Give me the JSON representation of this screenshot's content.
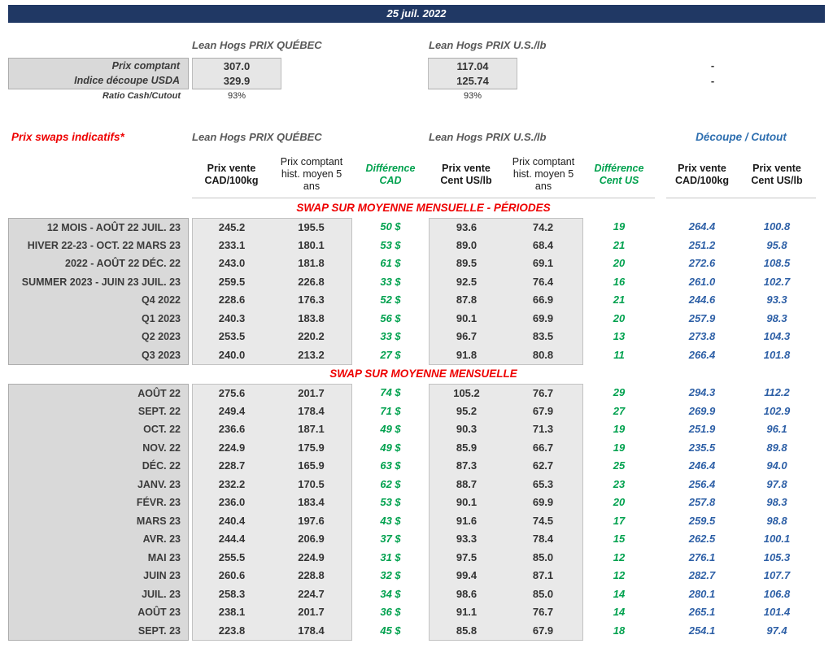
{
  "header": {
    "date": "25 juil. 2022"
  },
  "colors": {
    "banner_navy": "#203864",
    "section_red": "#ee0000",
    "difference_green": "#00a14e",
    "cutout_blue": "#2d5fa6",
    "label_gray": "#d9d9d9"
  },
  "spot": {
    "quebec_title": "Lean Hogs PRIX QUÉBEC",
    "us_title": "Lean Hogs PRIX U.S./lb",
    "rows": [
      {
        "label": "Prix comptant",
        "qc": "307.0",
        "us": "117.04",
        "note": "-"
      },
      {
        "label": "Indice découpe USDA",
        "qc": "329.9",
        "us": "125.74",
        "note": "-"
      },
      {
        "label": "Ratio Cash/Cutout",
        "qc": "93%",
        "us": "93%",
        "note": ""
      }
    ]
  },
  "swaps": {
    "title": "Prix swaps indicatifs*",
    "quebec_title": "Lean Hogs PRIX QUÉBEC",
    "us_title": "Lean Hogs PRIX U.S./lb",
    "cutout_title": "Découpe / Cutout",
    "columns": [
      "Prix vente CAD/100kg",
      "Prix comptant hist. moyen 5 ans",
      "Différence CAD",
      "Prix vente Cent US/lb",
      "Prix comptant hist. moyen 5 ans",
      "Différence Cent US",
      "Prix vente CAD/100kg",
      "Prix vente Cent US/lb"
    ],
    "sections": [
      {
        "title": "SWAP SUR MOYENNE MENSUELLE - PÉRIODES",
        "rows": [
          {
            "label": "12 MOIS - AOÛT 22 JUIL. 23",
            "cells": [
              "245.2",
              "195.5",
              "50 $",
              "93.6",
              "74.2",
              "19",
              "264.4",
              "100.8"
            ]
          },
          {
            "label": "HIVER 22-23 - OCT. 22 MARS 23",
            "cells": [
              "233.1",
              "180.1",
              "53 $",
              "89.0",
              "68.4",
              "21",
              "251.2",
              "95.8"
            ]
          },
          {
            "label": "2022 - AOÛT 22 DÉC. 22",
            "cells": [
              "243.0",
              "181.8",
              "61 $",
              "89.5",
              "69.1",
              "20",
              "272.6",
              "108.5"
            ]
          },
          {
            "label": "SUMMER 2023 - JUIN 23 JUIL. 23",
            "cells": [
              "259.5",
              "226.8",
              "33 $",
              "92.5",
              "76.4",
              "16",
              "261.0",
              "102.7"
            ]
          },
          {
            "label": "Q4 2022",
            "cells": [
              "228.6",
              "176.3",
              "52 $",
              "87.8",
              "66.9",
              "21",
              "244.6",
              "93.3"
            ]
          },
          {
            "label": "Q1 2023",
            "cells": [
              "240.3",
              "183.8",
              "56 $",
              "90.1",
              "69.9",
              "20",
              "257.9",
              "98.3"
            ]
          },
          {
            "label": "Q2 2023",
            "cells": [
              "253.5",
              "220.2",
              "33 $",
              "96.7",
              "83.5",
              "13",
              "273.8",
              "104.3"
            ]
          },
          {
            "label": "Q3 2023",
            "cells": [
              "240.0",
              "213.2",
              "27 $",
              "91.8",
              "80.8",
              "11",
              "266.4",
              "101.8"
            ]
          }
        ]
      },
      {
        "title": "SWAP SUR MOYENNE MENSUELLE",
        "rows": [
          {
            "label": "AOÛT 22",
            "cells": [
              "275.6",
              "201.7",
              "74 $",
              "105.2",
              "76.7",
              "29",
              "294.3",
              "112.2"
            ]
          },
          {
            "label": "SEPT. 22",
            "cells": [
              "249.4",
              "178.4",
              "71 $",
              "95.2",
              "67.9",
              "27",
              "269.9",
              "102.9"
            ]
          },
          {
            "label": "OCT. 22",
            "cells": [
              "236.6",
              "187.1",
              "49 $",
              "90.3",
              "71.3",
              "19",
              "251.9",
              "96.1"
            ]
          },
          {
            "label": "NOV. 22",
            "cells": [
              "224.9",
              "175.9",
              "49 $",
              "85.9",
              "66.7",
              "19",
              "235.5",
              "89.8"
            ]
          },
          {
            "label": "DÉC. 22",
            "cells": [
              "228.7",
              "165.9",
              "63 $",
              "87.3",
              "62.7",
              "25",
              "246.4",
              "94.0"
            ]
          },
          {
            "label": "JANV. 23",
            "cells": [
              "232.2",
              "170.5",
              "62 $",
              "88.7",
              "65.3",
              "23",
              "256.4",
              "97.8"
            ]
          },
          {
            "label": "FÉVR. 23",
            "cells": [
              "236.0",
              "183.4",
              "53 $",
              "90.1",
              "69.9",
              "20",
              "257.8",
              "98.3"
            ]
          },
          {
            "label": "MARS 23",
            "cells": [
              "240.4",
              "197.6",
              "43 $",
              "91.6",
              "74.5",
              "17",
              "259.5",
              "98.8"
            ]
          },
          {
            "label": "AVR. 23",
            "cells": [
              "244.4",
              "206.9",
              "37 $",
              "93.3",
              "78.4",
              "15",
              "262.5",
              "100.1"
            ]
          },
          {
            "label": "MAI 23",
            "cells": [
              "255.5",
              "224.9",
              "31 $",
              "97.5",
              "85.0",
              "12",
              "276.1",
              "105.3"
            ]
          },
          {
            "label": "JUIN 23",
            "cells": [
              "260.6",
              "228.8",
              "32 $",
              "99.4",
              "87.1",
              "12",
              "282.7",
              "107.7"
            ]
          },
          {
            "label": "JUIL. 23",
            "cells": [
              "258.3",
              "224.7",
              "34 $",
              "98.6",
              "85.0",
              "14",
              "280.1",
              "106.8"
            ]
          },
          {
            "label": "AOÛT 23",
            "cells": [
              "238.1",
              "201.7",
              "36 $",
              "91.1",
              "76.7",
              "14",
              "265.1",
              "101.4"
            ]
          },
          {
            "label": "SEPT. 23",
            "cells": [
              "223.8",
              "178.4",
              "45 $",
              "85.8",
              "67.9",
              "18",
              "254.1",
              "97.4"
            ]
          }
        ]
      }
    ]
  }
}
